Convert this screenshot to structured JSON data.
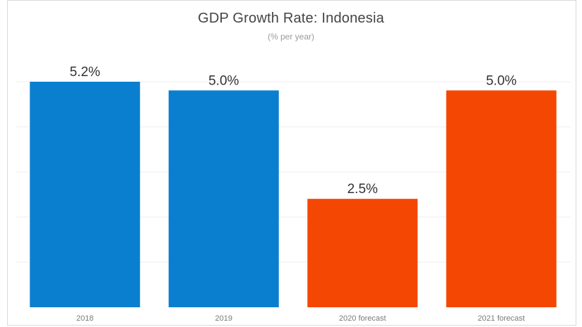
{
  "chart_data": {
    "type": "bar",
    "title": "GDP Growth Rate: Indonesia",
    "subtitle": "(% per year)",
    "categories": [
      "2018",
      "2019",
      "2020 forecast",
      "2021 forecast"
    ],
    "values": [
      5.2,
      5.0,
      2.5,
      5.0
    ],
    "data_labels": [
      "5.2%",
      "5.0%",
      "2.5%",
      "5.0%"
    ],
    "colors": [
      "#0a7fcf",
      "#0a7fcf",
      "#f54704",
      "#f54704"
    ],
    "ylim": [
      0,
      5.2
    ],
    "grid": true,
    "xlabel": "",
    "ylabel": ""
  }
}
